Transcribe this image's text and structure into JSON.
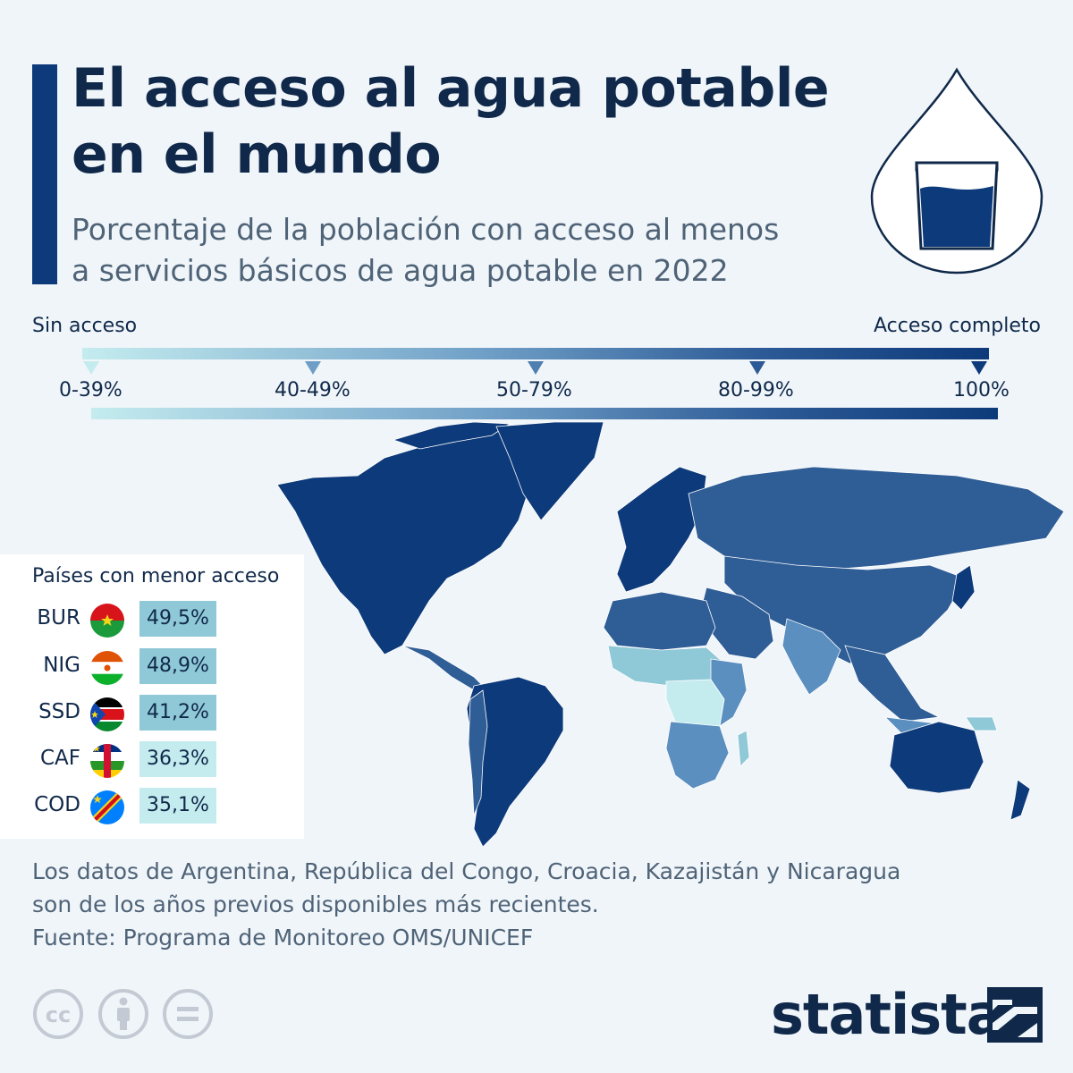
{
  "header": {
    "title_line1": "El acceso al agua potable",
    "title_line2": "en el mundo",
    "subtitle_line1": "Porcentaje de la población con acceso al menos",
    "subtitle_line2": "a servicios básicos de agua potable en 2022"
  },
  "legend": {
    "left_label": "Sin acceso",
    "right_label": "Acceso completo",
    "bins": [
      {
        "label": "0-39%",
        "color": "#c4ecef"
      },
      {
        "label": "40-49%",
        "color": "#8fc8d6"
      },
      {
        "label": "50-79%",
        "color": "#5a8fc0"
      },
      {
        "label": "80-99%",
        "color": "#2f5d96"
      },
      {
        "label": "100%",
        "color": "#0d3a7a"
      }
    ]
  },
  "lowest_access": {
    "title": "Países con menor acceso",
    "rows": [
      {
        "code": "BUR",
        "value": "49,5%",
        "flag": "burkina-faso-flag",
        "color": "#8fc8d6"
      },
      {
        "code": "NIG",
        "value": "48,9%",
        "flag": "niger-flag",
        "color": "#8fc8d6"
      },
      {
        "code": "SSD",
        "value": "41,2%",
        "flag": "south-sudan-flag",
        "color": "#8fc8d6"
      },
      {
        "code": "CAF",
        "value": "36,3%",
        "flag": "central-african-republic-flag",
        "color": "#c4ecef"
      },
      {
        "code": "COD",
        "value": "35,1%",
        "flag": "dr-congo-flag",
        "color": "#c4ecef"
      }
    ]
  },
  "footer": {
    "note_line1": "Los datos de Argentina, República del Congo, Croacia, Kazajistán y Nicaragua",
    "note_line2": "son de los años previos disponibles más recientes.",
    "source": "Fuente: Programa de Monitoreo OMS/UNICEF",
    "brand": "statista"
  },
  "colors": {
    "accent": "#0d3a7a",
    "title": "#10294a",
    "text_secondary": "#4f6377",
    "background": "#f0f5fa"
  }
}
